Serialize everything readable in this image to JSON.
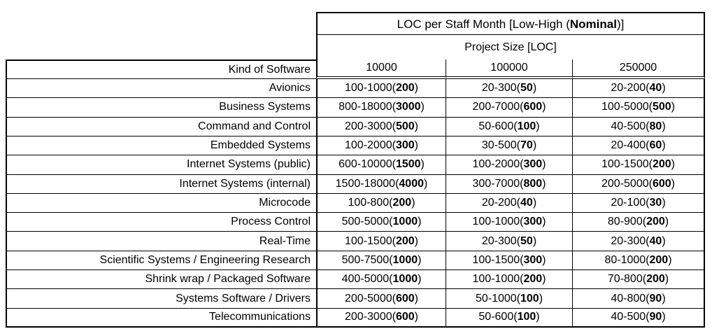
{
  "table": {
    "title_prefix": "LOC per Staff Month [Low-High (",
    "title_bold": "Nominal",
    "title_suffix": ")]",
    "subtitle": "Project Size [LOC]",
    "row_header_label": "Kind of Software",
    "size_columns": [
      "10000",
      "100000",
      "250000"
    ],
    "rows": [
      {
        "kind": "Avionics",
        "cells": [
          {
            "range": "100-1000",
            "nominal": "200"
          },
          {
            "range": "20-300",
            "nominal": "50"
          },
          {
            "range": "20-200",
            "nominal": "40"
          }
        ]
      },
      {
        "kind": "Business Systems",
        "cells": [
          {
            "range": "800-18000",
            "nominal": "3000"
          },
          {
            "range": "200-7000",
            "nominal": "600"
          },
          {
            "range": "100-5000",
            "nominal": "500"
          }
        ]
      },
      {
        "kind": "Command and Control",
        "cells": [
          {
            "range": "200-3000",
            "nominal": "500"
          },
          {
            "range": "50-600",
            "nominal": "100"
          },
          {
            "range": "40-500",
            "nominal": "80"
          }
        ]
      },
      {
        "kind": "Embedded Systems",
        "cells": [
          {
            "range": "100-2000",
            "nominal": "300"
          },
          {
            "range": "30-500",
            "nominal": "70"
          },
          {
            "range": "20-400",
            "nominal": "60"
          }
        ]
      },
      {
        "kind": "Internet Systems (public)",
        "cells": [
          {
            "range": "600-10000",
            "nominal": "1500"
          },
          {
            "range": "100-2000",
            "nominal": "300"
          },
          {
            "range": "100-1500",
            "nominal": "200"
          }
        ]
      },
      {
        "kind": "Internet Systems (internal)",
        "cells": [
          {
            "range": "1500-18000",
            "nominal": "4000"
          },
          {
            "range": "300-7000",
            "nominal": "800"
          },
          {
            "range": "200-5000",
            "nominal": "600"
          }
        ]
      },
      {
        "kind": "Microcode",
        "cells": [
          {
            "range": "100-800",
            "nominal": "200"
          },
          {
            "range": "20-200",
            "nominal": "40"
          },
          {
            "range": "20-100",
            "nominal": "30"
          }
        ]
      },
      {
        "kind": "Process Control",
        "cells": [
          {
            "range": "500-5000",
            "nominal": "1000"
          },
          {
            "range": "100-1000",
            "nominal": "300"
          },
          {
            "range": "80-900",
            "nominal": "200"
          }
        ]
      },
      {
        "kind": "Real-Time",
        "cells": [
          {
            "range": "100-1500",
            "nominal": "200"
          },
          {
            "range": "20-300",
            "nominal": "50"
          },
          {
            "range": "20-300",
            "nominal": "40"
          }
        ]
      },
      {
        "kind": "Scientific Systems / Engineering Research",
        "cells": [
          {
            "range": "500-7500",
            "nominal": "1000"
          },
          {
            "range": "100-1500",
            "nominal": "300"
          },
          {
            "range": "80-1000",
            "nominal": "200"
          }
        ]
      },
      {
        "kind": "Shrink wrap / Packaged Software",
        "cells": [
          {
            "range": "400-5000",
            "nominal": "1000"
          },
          {
            "range": "100-1000",
            "nominal": "200"
          },
          {
            "range": "70-800",
            "nominal": "200"
          }
        ]
      },
      {
        "kind": "Systems Software / Drivers",
        "cells": [
          {
            "range": "200-5000",
            "nominal": "600"
          },
          {
            "range": "50-1000",
            "nominal": "100"
          },
          {
            "range": "40-800",
            "nominal": "90"
          }
        ]
      },
      {
        "kind": "Telecommunications",
        "cells": [
          {
            "range": "200-3000",
            "nominal": "600"
          },
          {
            "range": "50-600",
            "nominal": "100"
          },
          {
            "range": "40-500",
            "nominal": "90"
          }
        ]
      }
    ]
  }
}
